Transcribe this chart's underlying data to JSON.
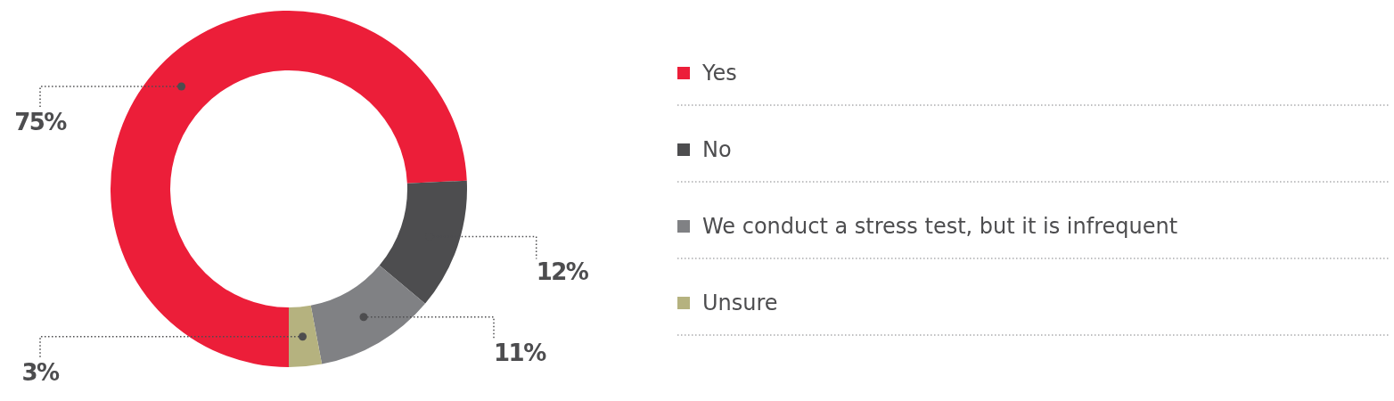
{
  "chart_data": {
    "type": "donut",
    "categories": [
      "Yes",
      "No",
      "We conduct a stress test, but it is infrequent",
      "Unsure"
    ],
    "values": [
      75,
      12,
      11,
      3
    ],
    "colors": [
      "#ec1e39",
      "#4d4d4f",
      "#808184",
      "#b5b27f"
    ],
    "value_labels": [
      "75%",
      "12%",
      "11%",
      "3%"
    ],
    "legend": "right"
  }
}
